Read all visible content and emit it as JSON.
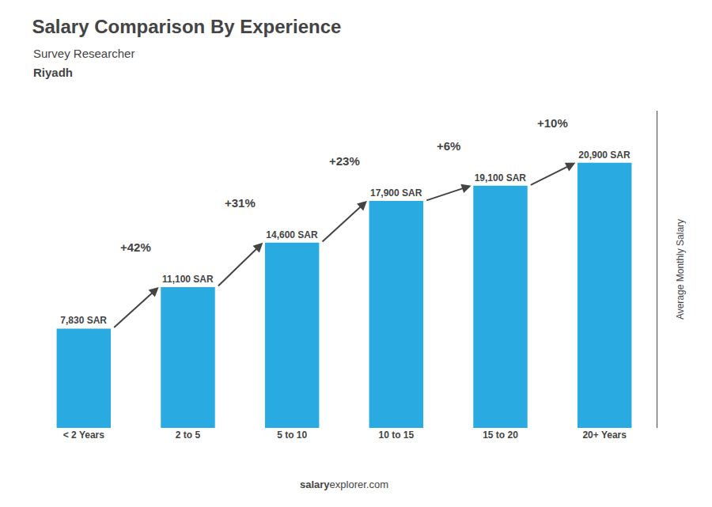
{
  "chart_data": {
    "type": "bar",
    "title": "Salary Comparison By Experience",
    "subtitle": "Survey Researcher",
    "city": "Riyadh",
    "ylabel": "Average Monthly Salary",
    "categories": [
      "< 2 Years",
      "2 to 5",
      "5 to 10",
      "10 to 15",
      "15 to 20",
      "20+ Years"
    ],
    "values": [
      7830,
      11100,
      14600,
      17900,
      19100,
      20900
    ],
    "value_labels": [
      "7,830 SAR",
      "11,100 SAR",
      "14,600 SAR",
      "17,900 SAR",
      "19,100 SAR",
      "20,900 SAR"
    ],
    "data_labels": true,
    "annotations": [
      "+42%",
      "+31%",
      "+23%",
      "+6%",
      "+10%"
    ],
    "footer": [
      "salary",
      "explorer.com"
    ],
    "color": "#29ABE2",
    "ylim": [
      0,
      25000
    ],
    "grid": false,
    "tick_labels": "x"
  }
}
